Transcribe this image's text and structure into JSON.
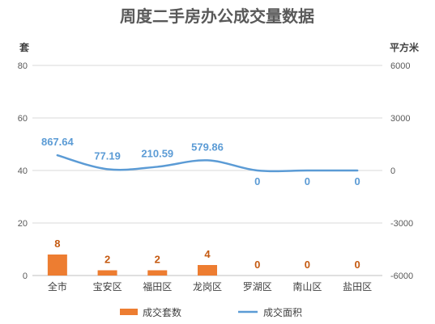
{
  "chart_data": {
    "type": "bar+line",
    "title": "周度二手房办公成交量数据",
    "left_axis_unit": "套",
    "right_axis_unit": "平方米",
    "categories": [
      "全市",
      "宝安区",
      "福田区",
      "龙岗区",
      "罗湖区",
      "南山区",
      "盐田区"
    ],
    "y_left": {
      "min": 0,
      "max": 80,
      "ticks": [
        "0",
        "20",
        "40",
        "60",
        "80"
      ]
    },
    "y_right": {
      "min": -6000,
      "max": 6000,
      "ticks": [
        "-6000",
        "-3000",
        "0",
        "3000",
        "6000"
      ]
    },
    "series": [
      {
        "name": "成交套数",
        "type": "bar",
        "axis": "left",
        "color": "#ED7D31",
        "label_color": "#C55A11",
        "values": [
          8,
          2,
          2,
          4,
          0,
          0,
          0
        ],
        "labels": [
          "8",
          "2",
          "2",
          "4",
          "0",
          "0",
          "0"
        ]
      },
      {
        "name": "成交面积",
        "type": "line",
        "axis": "right",
        "color": "#5B9BD5",
        "values": [
          867.64,
          77.19,
          210.59,
          579.86,
          0,
          0,
          0
        ],
        "labels": [
          "867.64",
          "77.19",
          "210.59",
          "579.86",
          "0",
          "0",
          "0"
        ]
      }
    ],
    "gridlines": true,
    "legend_position": "bottom"
  }
}
